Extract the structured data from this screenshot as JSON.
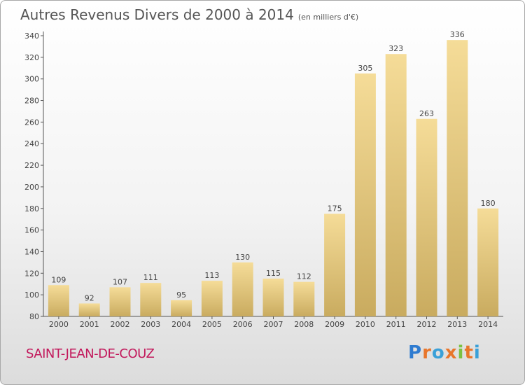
{
  "header": {
    "title": "Autres Revenus Divers de 2000 à 2014",
    "subtitle": "(en milliers d'€)"
  },
  "footer": {
    "commune": "SAINT-JEAN-DE-COUZ",
    "brand": "Proxiti",
    "brand_letters": [
      "P",
      "r",
      "o",
      "x",
      "i",
      "t",
      "i"
    ],
    "brand_colors": [
      "#2e7bd0",
      "#e8762b",
      "#3aa0d8",
      "#e8762b",
      "#7cc142",
      "#e8762b",
      "#3aa0d8"
    ]
  },
  "chart_data": {
    "type": "bar",
    "categories": [
      "2000",
      "2001",
      "2002",
      "2003",
      "2004",
      "2005",
      "2006",
      "2007",
      "2008",
      "2009",
      "2010",
      "2011",
      "2012",
      "2013",
      "2014"
    ],
    "values": [
      109,
      92,
      107,
      111,
      95,
      113,
      130,
      115,
      112,
      175,
      305,
      323,
      263,
      336,
      180
    ],
    "ylim": [
      80,
      340
    ],
    "yticks": [
      80,
      100,
      120,
      140,
      160,
      180,
      200,
      220,
      240,
      260,
      280,
      300,
      320,
      340
    ],
    "grid": false,
    "bar_color": "#e6c97a"
  }
}
